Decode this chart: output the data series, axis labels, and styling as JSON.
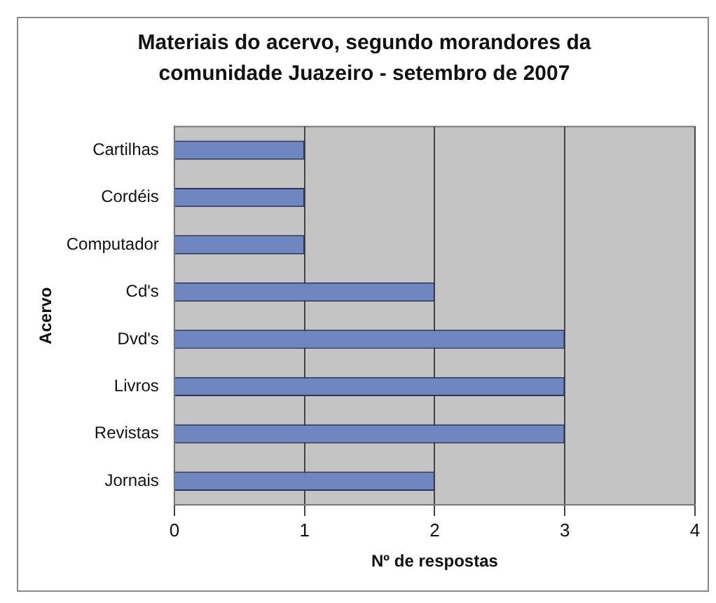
{
  "chart_data": {
    "type": "bar",
    "orientation": "horizontal",
    "title": "Materiais do acervo, segundo morandores da comunidade Juazeiro - setembro de 2007",
    "xlabel": "Nº de respostas",
    "ylabel": "Acervo",
    "categories": [
      "Cartilhas",
      "Cordéis",
      "Computador",
      "Cd's",
      "Dvd's",
      "Livros",
      "Revistas",
      "Jornais"
    ],
    "values": [
      1,
      1,
      1,
      2,
      3,
      3,
      3,
      2
    ],
    "color": "#6f86c0",
    "xlim": [
      0,
      4
    ],
    "xticks": [
      0,
      1,
      2,
      3,
      4
    ],
    "grid": "x",
    "legend": false
  }
}
